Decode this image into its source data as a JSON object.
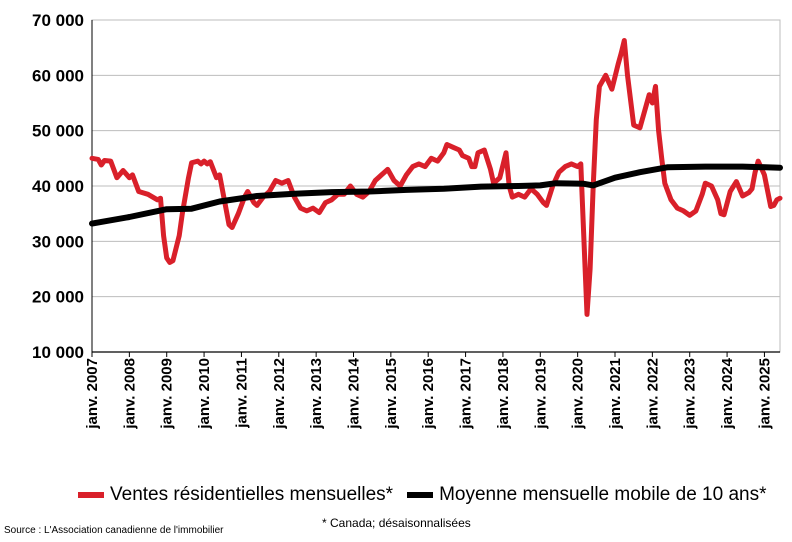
{
  "chart_data": {
    "type": "line",
    "ylim": [
      10000,
      70000
    ],
    "yticks": [
      {
        "value": 10000,
        "label": "10 000"
      },
      {
        "value": 20000,
        "label": "20 000"
      },
      {
        "value": 30000,
        "label": "30 000"
      },
      {
        "value": 40000,
        "label": "40 000"
      },
      {
        "value": 50000,
        "label": "50 000"
      },
      {
        "value": 60000,
        "label": "60 000"
      },
      {
        "value": 70000,
        "label": "70 000"
      }
    ],
    "xlim": [
      "2007-01",
      "2025-06"
    ],
    "xticks": [
      {
        "value": "2007-01",
        "label": "janv. 2007"
      },
      {
        "value": "2008-01",
        "label": "janv. 2008"
      },
      {
        "value": "2009-01",
        "label": "janv. 2009"
      },
      {
        "value": "2010-01",
        "label": "janv. 2010"
      },
      {
        "value": "2011-01",
        "label": "janv. 2011"
      },
      {
        "value": "2012-01",
        "label": "janv. 2012"
      },
      {
        "value": "2013-01",
        "label": "janv. 2013"
      },
      {
        "value": "2014-01",
        "label": "janv. 2014"
      },
      {
        "value": "2015-01",
        "label": "janv. 2015"
      },
      {
        "value": "2016-01",
        "label": "janv. 2016"
      },
      {
        "value": "2017-01",
        "label": "janv. 2017"
      },
      {
        "value": "2018-01",
        "label": "janv. 2018"
      },
      {
        "value": "2019-01",
        "label": "janv. 2019"
      },
      {
        "value": "2020-01",
        "label": "janv. 2020"
      },
      {
        "value": "2021-01",
        "label": "janv. 2021"
      },
      {
        "value": "2022-01",
        "label": "janv. 2022"
      },
      {
        "value": "2023-01",
        "label": "janv. 2023"
      },
      {
        "value": "2024-01",
        "label": "janv. 2024"
      },
      {
        "value": "2025-01",
        "label": "janv. 2025"
      }
    ],
    "grid": "horizontal",
    "legend_position": "bottom",
    "series": [
      {
        "name": "Ventes résidentielles mensuelles*",
        "color": "#d9202a",
        "points": [
          [
            "2007-01",
            45000
          ],
          [
            "2007-03",
            44800
          ],
          [
            "2007-04",
            43800
          ],
          [
            "2007-05",
            44600
          ],
          [
            "2007-07",
            44500
          ],
          [
            "2007-09",
            41500
          ],
          [
            "2007-11",
            42800
          ],
          [
            "2008-01",
            41500
          ],
          [
            "2008-02",
            42000
          ],
          [
            "2008-04",
            39000
          ],
          [
            "2008-07",
            38500
          ],
          [
            "2008-10",
            37500
          ],
          [
            "2008-11",
            37800
          ],
          [
            "2008-12",
            31000
          ],
          [
            "2009-01",
            27000
          ],
          [
            "2009-02",
            26200
          ],
          [
            "2009-03",
            26500
          ],
          [
            "2009-05",
            31000
          ],
          [
            "2009-06",
            35000
          ],
          [
            "2009-08",
            41500
          ],
          [
            "2009-09",
            44200
          ],
          [
            "2009-11",
            44500
          ],
          [
            "2009-12",
            44000
          ],
          [
            "2010-01",
            44500
          ],
          [
            "2010-02",
            44000
          ],
          [
            "2010-03",
            44400
          ],
          [
            "2010-05",
            41500
          ],
          [
            "2010-06",
            42000
          ],
          [
            "2010-08",
            36000
          ],
          [
            "2010-09",
            33000
          ],
          [
            "2010-10",
            32500
          ],
          [
            "2010-12",
            35000
          ],
          [
            "2011-02",
            38000
          ],
          [
            "2011-03",
            39000
          ],
          [
            "2011-05",
            37000
          ],
          [
            "2011-06",
            36500
          ],
          [
            "2011-08",
            38000
          ],
          [
            "2011-10",
            39000
          ],
          [
            "2011-12",
            41000
          ],
          [
            "2012-02",
            40500
          ],
          [
            "2012-04",
            41000
          ],
          [
            "2012-06",
            38000
          ],
          [
            "2012-08",
            36000
          ],
          [
            "2012-10",
            35500
          ],
          [
            "2012-12",
            36000
          ],
          [
            "2013-02",
            35200
          ],
          [
            "2013-04",
            37000
          ],
          [
            "2013-06",
            37500
          ],
          [
            "2013-08",
            38500
          ],
          [
            "2013-10",
            38500
          ],
          [
            "2013-12",
            40000
          ],
          [
            "2014-02",
            38500
          ],
          [
            "2014-04",
            38000
          ],
          [
            "2014-06",
            39000
          ],
          [
            "2014-08",
            41000
          ],
          [
            "2014-10",
            42000
          ],
          [
            "2014-12",
            43000
          ],
          [
            "2015-02",
            41000
          ],
          [
            "2015-04",
            40000
          ],
          [
            "2015-06",
            42000
          ],
          [
            "2015-08",
            43500
          ],
          [
            "2015-10",
            44000
          ],
          [
            "2015-12",
            43500
          ],
          [
            "2016-02",
            45000
          ],
          [
            "2016-04",
            44500
          ],
          [
            "2016-06",
            46000
          ],
          [
            "2016-07",
            47500
          ],
          [
            "2016-09",
            47000
          ],
          [
            "2016-11",
            46500
          ],
          [
            "2016-12",
            45500
          ],
          [
            "2017-02",
            45000
          ],
          [
            "2017-03",
            43500
          ],
          [
            "2017-04",
            43500
          ],
          [
            "2017-05",
            46000
          ],
          [
            "2017-07",
            46500
          ],
          [
            "2017-09",
            43000
          ],
          [
            "2017-10",
            40500
          ],
          [
            "2017-12",
            41500
          ],
          [
            "2018-02",
            46000
          ],
          [
            "2018-03",
            40000
          ],
          [
            "2018-04",
            38000
          ],
          [
            "2018-06",
            38500
          ],
          [
            "2018-08",
            38000
          ],
          [
            "2018-10",
            39500
          ],
          [
            "2018-12",
            38500
          ],
          [
            "2019-02",
            37000
          ],
          [
            "2019-03",
            36500
          ],
          [
            "2019-05",
            40000
          ],
          [
            "2019-07",
            42500
          ],
          [
            "2019-09",
            43500
          ],
          [
            "2019-11",
            44000
          ],
          [
            "2020-01",
            43500
          ],
          [
            "2020-02",
            44000
          ],
          [
            "2020-04",
            16800
          ],
          [
            "2020-05",
            25000
          ],
          [
            "2020-06",
            40000
          ],
          [
            "2020-07",
            52000
          ],
          [
            "2020-08",
            58000
          ],
          [
            "2020-10",
            60000
          ],
          [
            "2020-12",
            57500
          ],
          [
            "2021-02",
            62000
          ],
          [
            "2021-03",
            64000
          ],
          [
            "2021-04",
            66300
          ],
          [
            "2021-05",
            60000
          ],
          [
            "2021-07",
            51000
          ],
          [
            "2021-09",
            50500
          ],
          [
            "2021-11",
            54500
          ],
          [
            "2021-12",
            56500
          ],
          [
            "2022-01",
            55000
          ],
          [
            "2022-02",
            58000
          ],
          [
            "2022-03",
            50000
          ],
          [
            "2022-04",
            45000
          ],
          [
            "2022-05",
            40500
          ],
          [
            "2022-07",
            37500
          ],
          [
            "2022-09",
            36000
          ],
          [
            "2022-11",
            35500
          ],
          [
            "2023-01",
            34700
          ],
          [
            "2023-03",
            35500
          ],
          [
            "2023-05",
            38500
          ],
          [
            "2023-06",
            40500
          ],
          [
            "2023-08",
            40000
          ],
          [
            "2023-10",
            37500
          ],
          [
            "2023-11",
            35000
          ],
          [
            "2023-12",
            34800
          ],
          [
            "2024-02",
            39000
          ],
          [
            "2024-04",
            40800
          ],
          [
            "2024-06",
            38200
          ],
          [
            "2024-08",
            38800
          ],
          [
            "2024-09",
            39500
          ],
          [
            "2024-10",
            42500
          ],
          [
            "2024-11",
            44500
          ],
          [
            "2025-01",
            42000
          ],
          [
            "2025-03",
            36300
          ],
          [
            "2025-04",
            36500
          ],
          [
            "2025-05",
            37500
          ],
          [
            "2025-06",
            37800
          ]
        ]
      },
      {
        "name": "Moyenne mensuelle mobile de 10 ans*",
        "color": "#000000",
        "points": [
          [
            "2007-01",
            33200
          ],
          [
            "2008-01",
            34400
          ],
          [
            "2009-01",
            35800
          ],
          [
            "2009-09",
            35900
          ],
          [
            "2010-06",
            37200
          ],
          [
            "2011-06",
            38200
          ],
          [
            "2012-06",
            38600
          ],
          [
            "2013-06",
            38900
          ],
          [
            "2014-06",
            39000
          ],
          [
            "2015-06",
            39300
          ],
          [
            "2016-06",
            39500
          ],
          [
            "2017-06",
            39900
          ],
          [
            "2018-06",
            40000
          ],
          [
            "2019-01",
            40100
          ],
          [
            "2019-06",
            40500
          ],
          [
            "2020-03",
            40400
          ],
          [
            "2020-06",
            40100
          ],
          [
            "2021-01",
            41500
          ],
          [
            "2021-09",
            42500
          ],
          [
            "2022-06",
            43400
          ],
          [
            "2023-06",
            43500
          ],
          [
            "2024-06",
            43500
          ],
          [
            "2025-06",
            43300
          ]
        ]
      }
    ]
  },
  "legend": {
    "items": [
      {
        "label": "Ventes résidentielles mensuelles*",
        "color": "#d9202a"
      },
      {
        "label": "Moyenne mensuelle mobile de 10 ans*",
        "color": "#000000"
      }
    ]
  },
  "footnote": "* Canada; désaisonnalisées",
  "source": "Source : L'Association canadienne de l'immobilier"
}
